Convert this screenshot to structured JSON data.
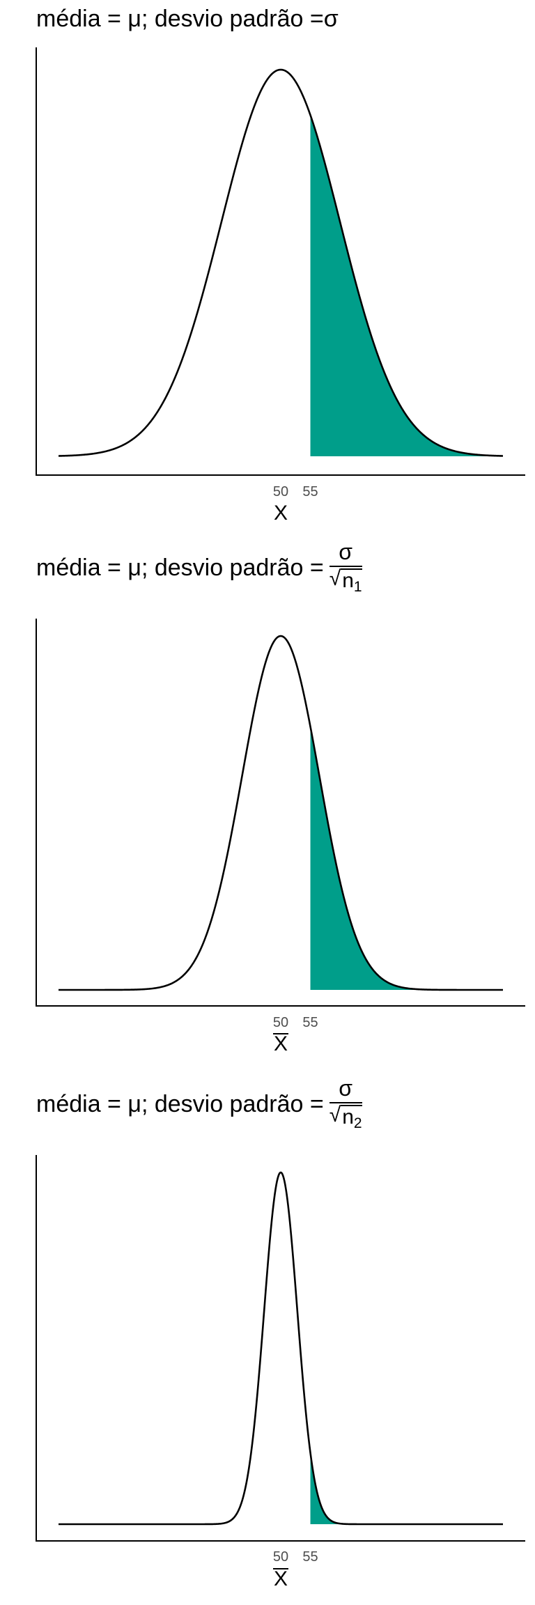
{
  "chart_data": [
    {
      "type": "area",
      "title": {
        "prefix": "média = μ; desvio padrão = ",
        "numerator": "σ",
        "denominator_base": "",
        "denominator_sub": ""
      },
      "xlabel": "X",
      "xlabel_overline": false,
      "x_ticks": [
        "50",
        "55"
      ],
      "xlim": [
        12.5,
        87.5
      ],
      "mean": 50,
      "sd": 10,
      "shade_from": 55,
      "fill_color": "#009E8A",
      "line_color": "#000000",
      "grid": false
    },
    {
      "type": "area",
      "title": {
        "prefix": "média = μ; desvio padrão = ",
        "numerator": "σ",
        "denominator_base": "n",
        "denominator_sub": "1"
      },
      "xlabel": "X",
      "xlabel_overline": true,
      "x_ticks": [
        "50",
        "55"
      ],
      "xlim": [
        12.5,
        87.5
      ],
      "mean": 50,
      "sd": 6.5,
      "shade_from": 55,
      "fill_color": "#009E8A",
      "line_color": "#000000",
      "grid": false
    },
    {
      "type": "area",
      "title": {
        "prefix": "média = μ; desvio padrão = ",
        "numerator": "σ",
        "denominator_base": "n",
        "denominator_sub": "2"
      },
      "xlabel": "X",
      "xlabel_overline": true,
      "x_ticks": [
        "50",
        "55"
      ],
      "xlim": [
        12.5,
        87.5
      ],
      "mean": 50,
      "sd": 2.8,
      "shade_from": 55,
      "fill_color": "#009E8A",
      "line_color": "#000000",
      "grid": false
    }
  ]
}
